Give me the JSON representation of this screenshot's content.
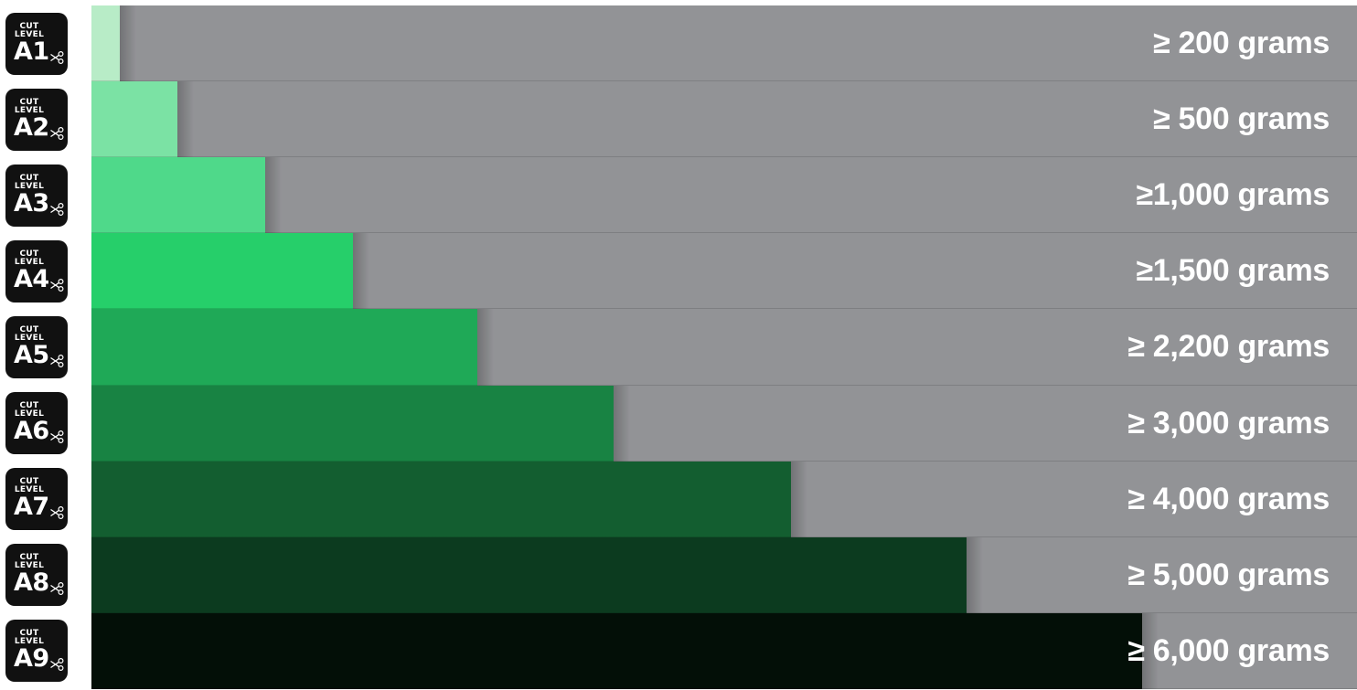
{
  "chart_data": {
    "type": "bar",
    "orientation": "horizontal",
    "badge_top_text": "CUT",
    "badge_mid_text": "LEVEL",
    "categories": [
      "A1",
      "A2",
      "A3",
      "A4",
      "A5",
      "A6",
      "A7",
      "A8",
      "A9"
    ],
    "value_labels": [
      "≥ 200 grams",
      "≥ 500 grams",
      "≥1,000 grams",
      "≥1,500 grams",
      "≥ 2,200 grams",
      "≥ 3,000 grams",
      "≥ 4,000 grams",
      "≥ 5,000 grams",
      "≥ 6,000 grams"
    ],
    "values": [
      200,
      500,
      1000,
      1500,
      2200,
      3000,
      4000,
      5000,
      6000
    ],
    "units": "grams",
    "colors": [
      "#b8ecc7",
      "#7be2a4",
      "#4fd98a",
      "#26cf6a",
      "#1fa957",
      "#188343",
      "#135e30",
      "#0c3b1f",
      "#030f07"
    ],
    "track_color": "#929396",
    "badge_color": "#111111",
    "icon": "scissors-icon"
  }
}
